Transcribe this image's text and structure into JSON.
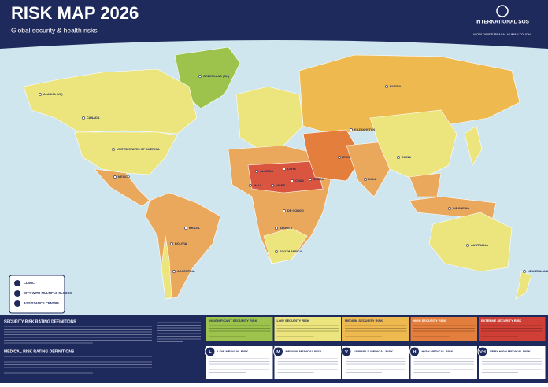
{
  "header": {
    "title": "RISK MAP 2026",
    "subtitle": "Global security & health risks",
    "logo_name": "INTERNATIONAL SOS",
    "logo_tagline": "WORLDWIDE REACH. HUMAN TOUCH."
  },
  "map_labels": [
    "ALASKA (US)",
    "CANADA",
    "UNITED STATES OF AMERICA",
    "MEXICO",
    "GREENLAND (DK)",
    "BRAZIL",
    "BOLIVIA",
    "ARGENTINA",
    "RUSSIA",
    "KAZAKHSTAN",
    "CHINA",
    "INDIA",
    "IRAN",
    "ALGERIA",
    "LIBYA",
    "MALI",
    "NIGER",
    "CHAD",
    "SUDAN",
    "DR CONGO",
    "ANGOLA",
    "SOUTH AFRICA",
    "INDONESIA",
    "AUSTRALIA",
    "NEW ZEALAND"
  ],
  "legend": [
    "CLINIC",
    "CITY WITH MULTIPLE CLINICS",
    "ASSISTANCE CENTRE"
  ],
  "definitions": {
    "security_title": "SECURITY RISK RATING DEFINITIONS",
    "medical_title": "MEDICAL RISK RATING DEFINITIONS",
    "security_levels": [
      {
        "label": "INSIGNIFICANT SECURITY RISK",
        "color": "#9dc34d"
      },
      {
        "label": "LOW SECURITY RISK",
        "color": "#ece47c"
      },
      {
        "label": "MEDIUM SECURITY RISK",
        "color": "#eeb94f"
      },
      {
        "label": "HIGH SECURITY RISK",
        "color": "#e47e3c"
      },
      {
        "label": "EXTREME SECURITY RISK",
        "color": "#cf3f35"
      }
    ],
    "medical_levels": [
      {
        "badge": "L",
        "label": "LOW MEDICAL RISK"
      },
      {
        "badge": "M",
        "label": "MEDIUM MEDICAL RISK"
      },
      {
        "badge": "V",
        "label": "VARIABLE MEDICAL RISK"
      },
      {
        "badge": "H",
        "label": "HIGH MEDICAL RISK"
      },
      {
        "badge": "VH",
        "label": "VERY HIGH MEDICAL RISK"
      }
    ]
  }
}
